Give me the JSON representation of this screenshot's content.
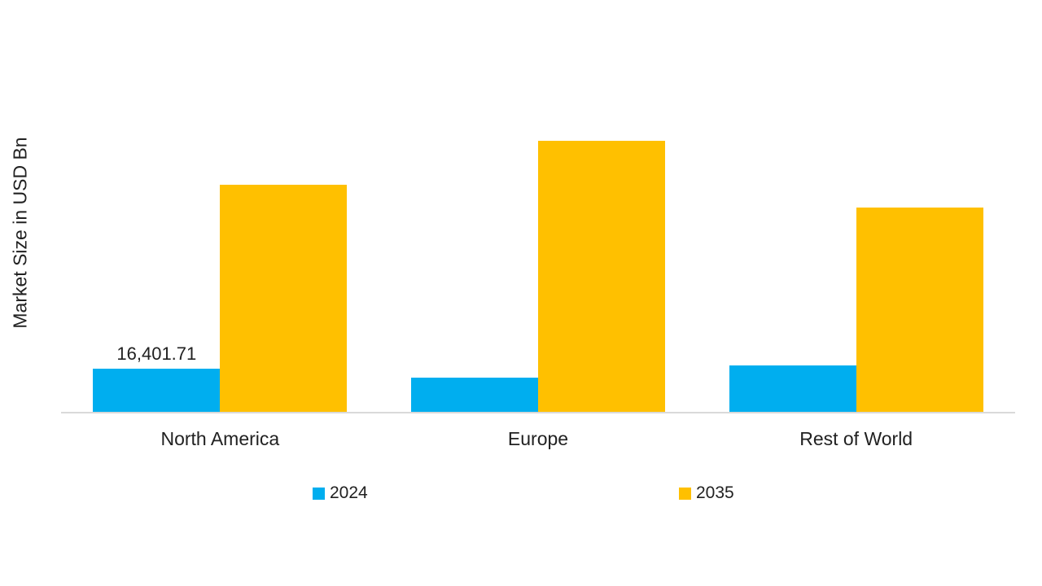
{
  "chart_data": {
    "type": "bar",
    "title": "",
    "xlabel": "",
    "ylabel": "Market Size in USD Bn",
    "categories": [
      "North America",
      "Europe",
      "Rest of World"
    ],
    "series": [
      {
        "name": "2024",
        "color": "#00AEEF",
        "values": [
          16401.71,
          13060,
          17620
        ]
      },
      {
        "name": "2035",
        "color": "#FFC000",
        "values": [
          85000,
          101450,
          76540
        ]
      }
    ],
    "annotations": [
      {
        "series": "2024",
        "category": "North America",
        "series_index": 0,
        "category_index": 0,
        "text": "16,401.71",
        "value": 16401.71
      }
    ],
    "value_axis": {
      "min": 0,
      "tick_labels_visible": false,
      "unit": "USD Bn"
    },
    "grid": false,
    "legend_position": "bottom",
    "note": "Only the North America 2024 bar carries a data label (16,401.71); all other series values are estimated from relative bar heights."
  },
  "colors": {
    "axis_line": "#D9D9D9",
    "text": "#212121",
    "background": "#FFFFFF"
  }
}
